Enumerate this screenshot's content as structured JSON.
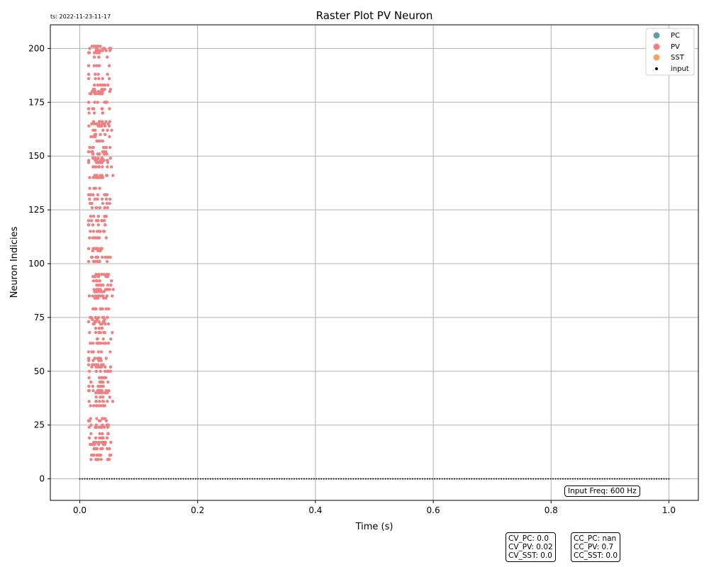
{
  "timestamp": "ts: 2022-11-23-11-17",
  "annotations": {
    "input_freq": "Input Freq: 600 Hz",
    "cv": [
      "CV_PC: 0.0",
      "CV_PV: 0.02",
      "CV_SST: 0.0"
    ],
    "cc": [
      "CC_PC: nan",
      "CC_PV: 0.7",
      "CC_SST: 0.0"
    ]
  },
  "colors": {
    "PC": "#5f9ea0",
    "PV": "#f08080",
    "SST": "#f4a460",
    "input": "#000000",
    "grid": "#b0b0b0"
  },
  "chart_data": {
    "type": "scatter",
    "title": "Raster Plot PV Neuron",
    "xlabel": "Time (s)",
    "ylabel": "Neuron Indicies",
    "xlim": [
      -0.05,
      1.05
    ],
    "ylim": [
      -10,
      211
    ],
    "xticks": [
      0.0,
      0.2,
      0.4,
      0.6,
      0.8,
      1.0
    ],
    "xtick_labels": [
      "0.0",
      "0.2",
      "0.4",
      "0.6",
      "0.8",
      "1.0"
    ],
    "yticks": [
      0,
      25,
      50,
      75,
      100,
      125,
      150,
      175,
      200
    ],
    "ytick_labels": [
      "0",
      "25",
      "50",
      "75",
      "100",
      "125",
      "150",
      "175",
      "200"
    ],
    "grid": true,
    "legend_position": "top-right",
    "legend": [
      "PC",
      "PV",
      "SST",
      "input"
    ],
    "series": [
      {
        "name": "PC",
        "points": []
      },
      {
        "name": "PV",
        "neuron_rows": [
          9,
          11,
          14,
          16,
          17,
          19,
          21,
          24,
          25,
          27,
          28,
          34,
          36,
          38,
          40,
          41,
          43,
          45,
          47,
          50,
          52,
          53,
          55,
          56,
          59,
          63,
          65,
          68,
          70,
          72,
          73,
          74,
          75,
          79,
          84,
          85,
          87,
          88,
          90,
          92,
          94,
          95,
          101,
          103,
          106,
          107,
          112,
          115,
          118,
          120,
          122,
          126,
          128,
          130,
          132,
          135,
          140,
          141,
          145,
          147,
          148,
          149,
          151,
          152,
          154,
          157,
          159,
          160,
          162,
          164,
          165,
          166,
          170,
          172,
          175,
          179,
          180,
          181,
          183,
          186,
          188,
          192,
          196,
          198,
          199,
          200,
          201
        ],
        "time_range_s": [
          0.015,
          0.065
        ]
      },
      {
        "name": "SST",
        "points": []
      },
      {
        "name": "input",
        "neuron_index": 0,
        "time_range_s": [
          0.0,
          1.0
        ],
        "rate_hz": 600
      }
    ]
  }
}
